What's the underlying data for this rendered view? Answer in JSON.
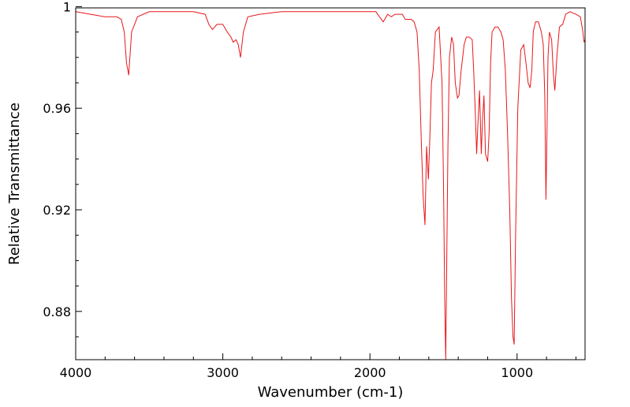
{
  "chart_data": {
    "type": "line",
    "title": "",
    "xlabel": "Wavenumber (cm-1)",
    "ylabel": "Relative Transmittance",
    "xlim": [
      4000,
      538
    ],
    "ylim": [
      0.861,
      0.9995
    ],
    "x_reversed": true,
    "x_ticks": [
      4000,
      3000,
      2000,
      1000
    ],
    "x_tick_labels": [
      "4000",
      "3000",
      "2000",
      "1000"
    ],
    "y_ticks": [
      1,
      0.96,
      0.92,
      0.88
    ],
    "y_tick_labels": [
      "1",
      "0.96",
      "0.92",
      "0.88"
    ],
    "grid": false,
    "legend": "none",
    "colors": {
      "series": "#e8171b",
      "axes": "#000000"
    },
    "series": [
      {
        "x": [
          4000,
          3900,
          3800,
          3720,
          3690,
          3670,
          3655,
          3640,
          3620,
          3580,
          3500,
          3400,
          3300,
          3200,
          3120,
          3095,
          3070,
          3040,
          3000,
          2970,
          2945,
          2930,
          2910,
          2895,
          2880,
          2860,
          2830,
          2750,
          2600,
          2400,
          2200,
          2000,
          1960,
          1935,
          1910,
          1880,
          1855,
          1830,
          1780,
          1760,
          1720,
          1700,
          1680,
          1665,
          1650,
          1638,
          1626,
          1615,
          1603,
          1592,
          1582,
          1570,
          1555,
          1530,
          1510,
          1500,
          1492,
          1485,
          1478,
          1470,
          1460,
          1445,
          1432,
          1420,
          1405,
          1395,
          1380,
          1360,
          1345,
          1325,
          1305,
          1295,
          1285,
          1275,
          1265,
          1255,
          1243,
          1235,
          1225,
          1215,
          1200,
          1190,
          1180,
          1170,
          1150,
          1130,
          1110,
          1095,
          1080,
          1065,
          1050,
          1038,
          1028,
          1020,
          1010,
          995,
          975,
          955,
          940,
          925,
          912,
          900,
          890,
          875,
          855,
          835,
          822,
          812,
          804,
          797,
          790,
          780,
          765,
          753,
          743,
          730,
          712,
          690,
          670,
          640,
          600,
          570,
          555,
          545,
          538
        ],
        "y": [
          0.998,
          0.997,
          0.996,
          0.996,
          0.995,
          0.99,
          0.978,
          0.973,
          0.99,
          0.996,
          0.998,
          0.998,
          0.998,
          0.998,
          0.997,
          0.993,
          0.991,
          0.993,
          0.993,
          0.99,
          0.988,
          0.986,
          0.987,
          0.985,
          0.98,
          0.99,
          0.996,
          0.997,
          0.998,
          0.998,
          0.998,
          0.998,
          0.998,
          0.996,
          0.994,
          0.997,
          0.996,
          0.997,
          0.997,
          0.995,
          0.995,
          0.994,
          0.99,
          0.975,
          0.945,
          0.925,
          0.914,
          0.945,
          0.932,
          0.95,
          0.97,
          0.975,
          0.99,
          0.992,
          0.97,
          0.93,
          0.885,
          0.861,
          0.9,
          0.945,
          0.98,
          0.988,
          0.985,
          0.97,
          0.964,
          0.965,
          0.975,
          0.985,
          0.988,
          0.988,
          0.987,
          0.975,
          0.96,
          0.942,
          0.955,
          0.967,
          0.942,
          0.955,
          0.965,
          0.942,
          0.939,
          0.95,
          0.978,
          0.99,
          0.992,
          0.992,
          0.99,
          0.987,
          0.975,
          0.95,
          0.92,
          0.885,
          0.87,
          0.867,
          0.91,
          0.96,
          0.983,
          0.985,
          0.978,
          0.97,
          0.968,
          0.975,
          0.99,
          0.994,
          0.994,
          0.99,
          0.985,
          0.965,
          0.924,
          0.95,
          0.98,
          0.99,
          0.987,
          0.973,
          0.967,
          0.98,
          0.992,
          0.993,
          0.997,
          0.998,
          0.997,
          0.996,
          0.991,
          0.986,
          0.987
        ]
      }
    ]
  }
}
